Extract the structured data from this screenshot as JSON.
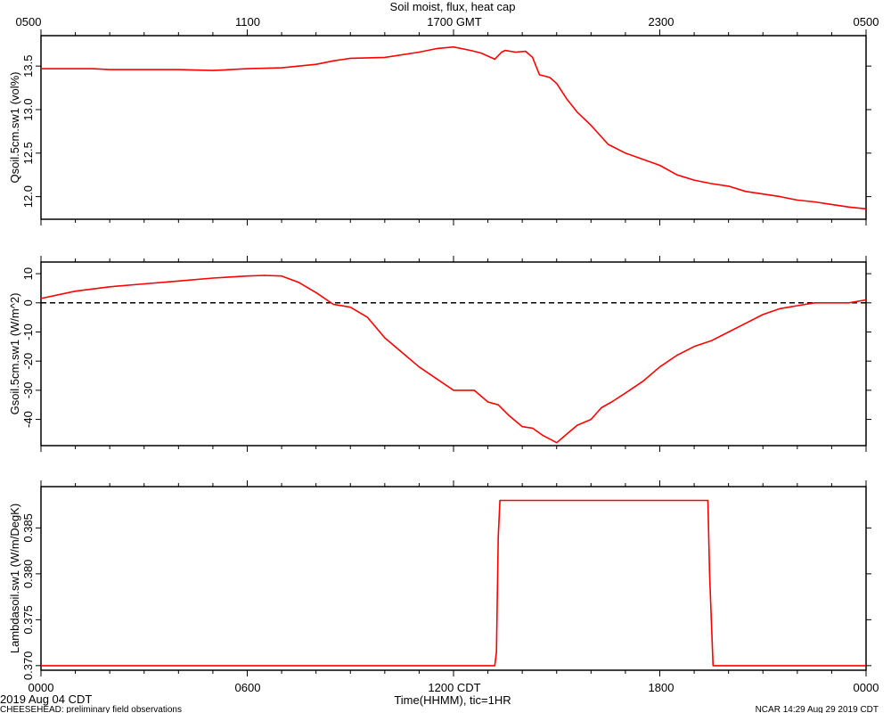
{
  "title": "Soil moist, flux, heat cap",
  "top_axis": {
    "ticks": [
      "0500",
      "1100",
      "1700 GMT",
      "2300",
      "0500"
    ]
  },
  "bottom_axis": {
    "ticks": [
      "0000",
      "0600",
      "1200 CDT",
      "1800",
      "0000"
    ],
    "label": "Time(HHMM), tic=1HR"
  },
  "footer": {
    "date": "2019 Aug 04 CDT",
    "left_note": "CHEESEHEAD: preliminary field observations",
    "right_note": "NCAR 14:29 Aug 29 2019 CDT"
  },
  "colors": {
    "series": "#ff0000",
    "axis": "#000000",
    "zero_line": "#000000"
  },
  "chart_data": [
    {
      "type": "line",
      "ylabel": "Qsoil.5cm.sw1 (vol%)",
      "x_unit": "hours (CDT)",
      "xlim": [
        0,
        24
      ],
      "ylim": [
        11.74,
        13.85
      ],
      "yticks": [
        12.0,
        12.5,
        13.0,
        13.5
      ],
      "ytick_labels": [
        "12.0",
        "12.5",
        "13.0",
        "13.5"
      ],
      "series": [
        {
          "x": [
            0,
            1,
            1.5,
            2,
            3,
            4,
            5,
            5.5,
            6,
            7,
            8,
            8.5,
            9,
            10,
            11,
            11.5,
            12,
            12.5,
            12.8,
            13.2,
            13.4,
            13.5,
            13.8,
            14.1,
            14.3,
            14.5,
            14.8,
            15,
            15.3,
            15.6,
            16,
            16.5,
            17,
            17.5,
            18,
            18.5,
            19,
            19.5,
            20,
            20.5,
            21,
            21.5,
            22,
            22.5,
            23,
            23.5,
            24
          ],
          "y": [
            13.47,
            13.47,
            13.47,
            13.46,
            13.46,
            13.46,
            13.45,
            13.46,
            13.47,
            13.48,
            13.52,
            13.56,
            13.59,
            13.6,
            13.66,
            13.7,
            13.72,
            13.68,
            13.65,
            13.58,
            13.66,
            13.68,
            13.66,
            13.67,
            13.6,
            13.4,
            13.37,
            13.3,
            13.12,
            12.97,
            12.82,
            12.6,
            12.5,
            12.43,
            12.36,
            12.25,
            12.19,
            12.15,
            12.12,
            12.06,
            12.03,
            12.0,
            11.96,
            11.94,
            11.91,
            11.88,
            11.86
          ]
        }
      ]
    },
    {
      "type": "line",
      "ylabel": "Gsoil.5cm.sw1 (W/m^2)",
      "x_unit": "hours (CDT)",
      "xlim": [
        0,
        24
      ],
      "ylim": [
        -49,
        14
      ],
      "yticks": [
        -40,
        -30,
        -20,
        -10,
        0,
        10
      ],
      "ytick_labels": [
        "-40",
        "-30",
        "-20",
        "-10",
        "0",
        "10"
      ],
      "reference_line": {
        "y": 0,
        "style": "dashed"
      },
      "series": [
        {
          "x": [
            0,
            1,
            2,
            3,
            4,
            5,
            6,
            6.5,
            7,
            7.5,
            8,
            8.5,
            9,
            9.5,
            10,
            10.5,
            11,
            11.5,
            12,
            12.3,
            12.6,
            13,
            13.3,
            13.6,
            14,
            14.3,
            14.6,
            15,
            15.3,
            15.6,
            16,
            16.3,
            16.6,
            17,
            17.5,
            18,
            18.5,
            19,
            19.5,
            20,
            20.5,
            21,
            21.5,
            22,
            22.5,
            23,
            23.5,
            24
          ],
          "y": [
            1.5,
            4,
            5.5,
            6.5,
            7.5,
            8.5,
            9.2,
            9.4,
            9.2,
            7,
            3.5,
            -0.5,
            -1.5,
            -5,
            -12,
            -17,
            -22,
            -26,
            -30,
            -30,
            -30,
            -34,
            -35,
            -38.5,
            -42.5,
            -43,
            -45.5,
            -48,
            -45,
            -42,
            -40,
            -36,
            -34,
            -31,
            -27,
            -22,
            -18,
            -15,
            -13,
            -10,
            -7,
            -4,
            -2,
            -1,
            0,
            0,
            0,
            1
          ]
        }
      ]
    },
    {
      "type": "line",
      "ylabel": "Lambdasoil.sw1 (W/m/DegK)",
      "x_unit": "hours (CDT)",
      "xlim": [
        0,
        24
      ],
      "ylim": [
        0.3695,
        0.3895
      ],
      "yticks": [
        0.37,
        0.375,
        0.38,
        0.385
      ],
      "ytick_labels": [
        "0.370",
        "0.375",
        "0.380",
        "0.385"
      ],
      "series": [
        {
          "x": [
            0,
            13.2,
            13.25,
            13.3,
            13.35,
            19.4,
            19.45,
            19.55,
            24
          ],
          "y": [
            0.37,
            0.37,
            0.3715,
            0.384,
            0.388,
            0.388,
            0.38,
            0.37,
            0.37
          ]
        }
      ]
    }
  ]
}
